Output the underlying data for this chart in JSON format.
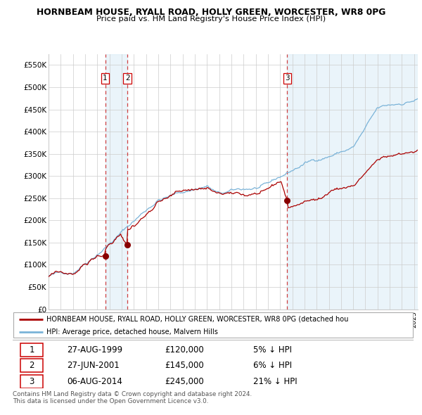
{
  "title": "HORNBEAM HOUSE, RYALL ROAD, HOLLY GREEN, WORCESTER, WR8 0PG",
  "subtitle": "Price paid vs. HM Land Registry's House Price Index (HPI)",
  "ylabel_ticks": [
    "£0",
    "£50K",
    "£100K",
    "£150K",
    "£200K",
    "£250K",
    "£300K",
    "£350K",
    "£400K",
    "£450K",
    "£500K",
    "£550K"
  ],
  "ylabel_values": [
    0,
    50000,
    100000,
    150000,
    200000,
    250000,
    300000,
    350000,
    400000,
    450000,
    500000,
    550000
  ],
  "hpi_color": "#7ab3d8",
  "price_color": "#aa0000",
  "dashed_color": "#cc2222",
  "sale_marker_color": "#880000",
  "sale_label_color": "#cc0000",
  "shade_color": "#dceef8",
  "legend_label_red": "HORNBEAM HOUSE, RYALL ROAD, HOLLY GREEN, WORCESTER, WR8 0PG (detached hou",
  "legend_label_blue": "HPI: Average price, detached house, Malvern Hills",
  "transactions": [
    {
      "num": 1,
      "date": "27-AUG-1999",
      "price": 120000,
      "pct": "5%",
      "dir": "↓",
      "year_x": 1999.65
    },
    {
      "num": 2,
      "date": "27-JUN-2001",
      "price": 145000,
      "pct": "6%",
      "dir": "↓",
      "year_x": 2001.48
    },
    {
      "num": 3,
      "date": "06-AUG-2014",
      "price": 245000,
      "pct": "21%",
      "dir": "↓",
      "year_x": 2014.59
    }
  ],
  "footer_line1": "Contains HM Land Registry data © Crown copyright and database right 2024.",
  "footer_line2": "This data is licensed under the Open Government Licence v3.0.",
  "xlim": [
    1995.0,
    2025.3
  ],
  "ylim": [
    0,
    575000
  ]
}
